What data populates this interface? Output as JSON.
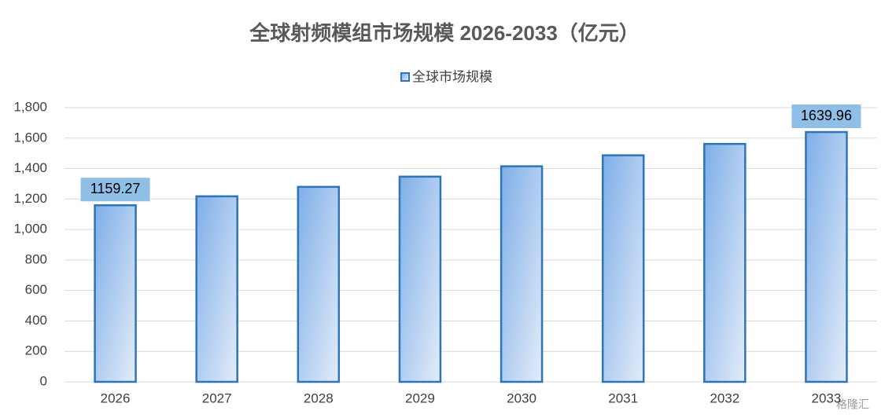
{
  "chart_data": {
    "type": "bar",
    "title": "全球射频模组市场规模 2026-2033（亿元）",
    "categories": [
      "2026",
      "2027",
      "2028",
      "2029",
      "2030",
      "2031",
      "2032",
      "2033"
    ],
    "series": [
      {
        "name": "全球市场规模",
        "color": "#2e75b6",
        "values": [
          1159.27,
          1218,
          1280,
          1347,
          1415,
          1487,
          1562,
          1639.96
        ],
        "value_labels": [
          "1159.27",
          null,
          null,
          null,
          null,
          null,
          null,
          "1639.96"
        ]
      }
    ],
    "ylim": [
      0,
      1800
    ],
    "yticks": [
      0,
      200,
      400,
      600,
      800,
      {
        "value": 1000,
        "label": "1,000"
      },
      {
        "value": 1200,
        "label": "1,200"
      },
      {
        "value": 1400,
        "label": "1,400"
      },
      {
        "value": 1600,
        "label": "1,600"
      },
      {
        "value": 1800,
        "label": "1,800"
      }
    ],
    "grid": true,
    "legend": "top",
    "watermark": "格隆汇"
  }
}
